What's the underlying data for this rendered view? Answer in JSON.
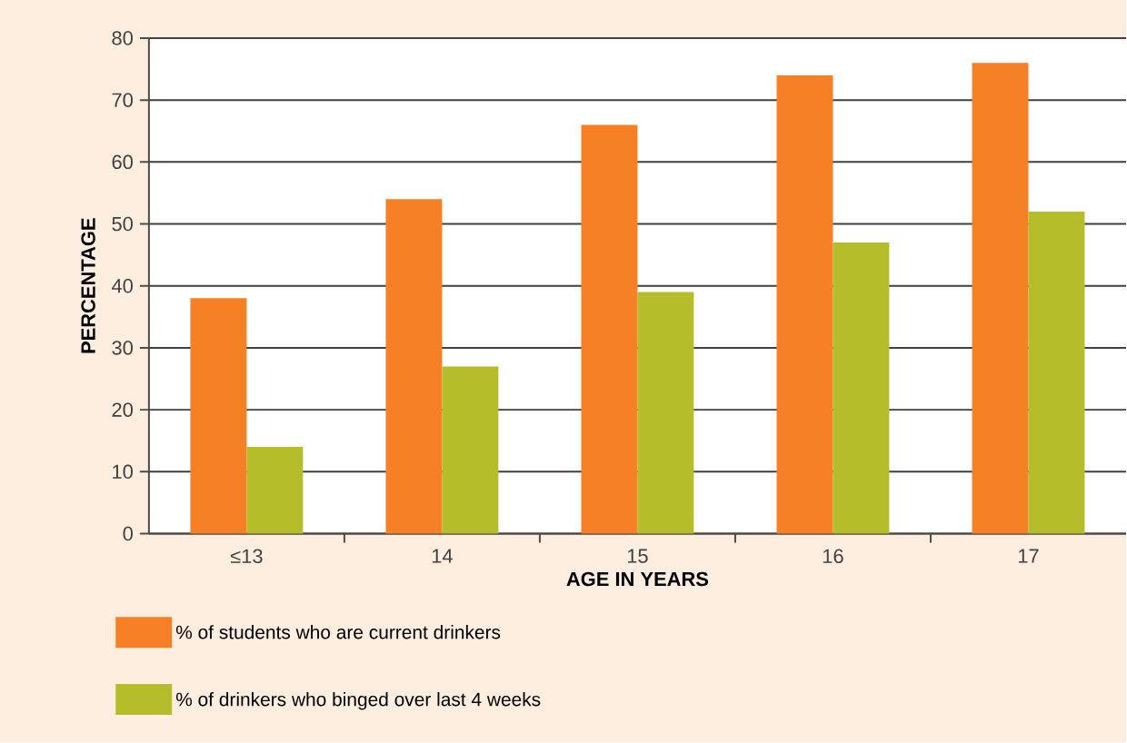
{
  "chart_data": {
    "type": "bar",
    "xlabel": "AGE IN YEARS",
    "ylabel": "PERCENTAGE",
    "categories": [
      "≤13",
      "14",
      "15",
      "16",
      "17"
    ],
    "series": [
      {
        "name": "% of students who are current drinkers",
        "color": "#f58025",
        "values": [
          38,
          54,
          66,
          74,
          76
        ]
      },
      {
        "name": "% of drinkers who binged over last 4 weeks",
        "color": "#b5bd2b",
        "values": [
          14,
          27,
          39,
          47,
          52
        ]
      }
    ],
    "ylim": [
      0,
      80
    ],
    "yticks": [
      0,
      10,
      20,
      30,
      40,
      50,
      60,
      70,
      80
    ],
    "grid": "y",
    "legend": "bottom left"
  }
}
